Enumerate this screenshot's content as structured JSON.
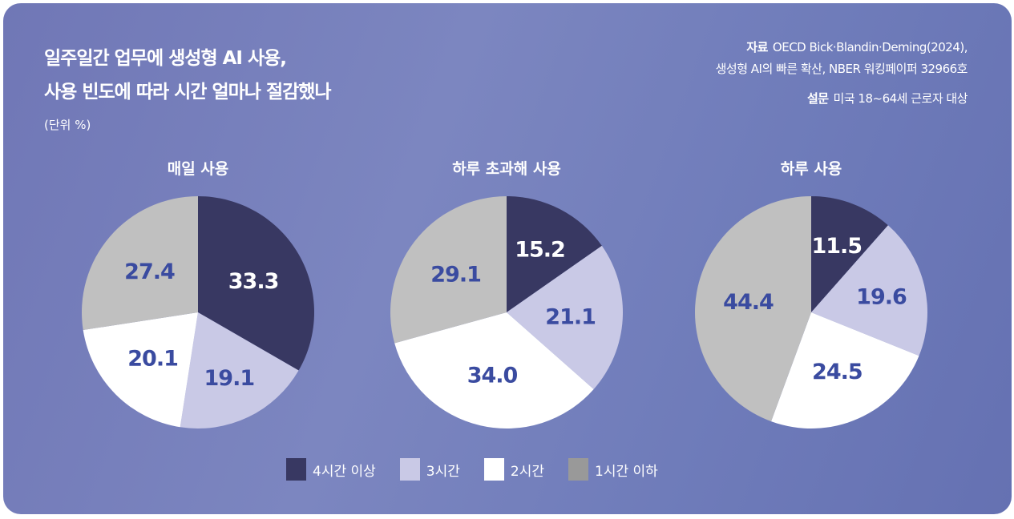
{
  "title_line1": "일주일간 업무에 생성형 AI 사용,",
  "title_line2": "사용 빈도에 따라 시간 얼마나 절감했나",
  "unit": "(단위 %)",
  "source_label": "자료",
  "source_line1": "OECD Bick·Blandin·Deming(2024),",
  "source_line2": "생성형 AI의 빠른 확산, NBER 워킹페이퍼 32966호",
  "survey_label": "설문",
  "survey_text": "미국 18~64세 근로자 대상",
  "colors": {
    "4h": "#383862",
    "3h": "#c9c9e6",
    "2h": "#ffffff",
    "1h": "#c0c0c0",
    "legend_1h": "#999999",
    "label": "#3a4ba0"
  },
  "chart_data": {
    "type": "pie",
    "legend": [
      "4시간 이상",
      "3시간",
      "2시간",
      "1시간 이하"
    ],
    "legend_placement": "bottom",
    "charts": [
      {
        "title": "매일 사용",
        "values": [
          33.3,
          19.1,
          20.1,
          27.4
        ]
      },
      {
        "title": "하루 초과해 사용",
        "values": [
          15.2,
          21.1,
          34.0,
          29.1
        ]
      },
      {
        "title": "하루 사용",
        "values": [
          11.5,
          19.6,
          24.5,
          44.4
        ]
      }
    ]
  }
}
